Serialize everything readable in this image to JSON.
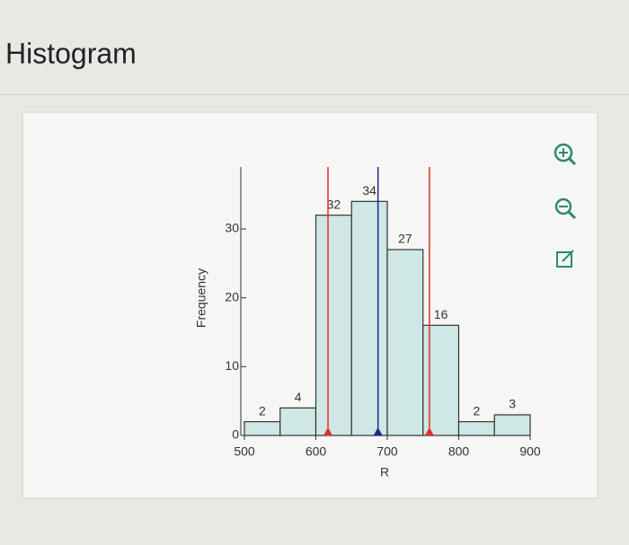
{
  "chart_data": {
    "type": "histogram",
    "title": "Histogram",
    "bins": [
      500,
      550,
      600,
      650,
      700,
      750,
      800,
      850,
      900
    ],
    "values": [
      2,
      4,
      32,
      34,
      27,
      16,
      2,
      3
    ],
    "color": "#cfe7e5",
    "xlabel": "R",
    "ylabel": "Frequency",
    "xlim": [
      500,
      900
    ],
    "xticks": [
      500,
      600,
      700,
      800,
      900
    ],
    "ylim": [
      0,
      39
    ],
    "yticks": [
      0,
      10,
      20,
      30
    ],
    "markers": [
      {
        "value": 617,
        "color": "#e0302a"
      },
      {
        "value": 687,
        "color": "#1f2a8a"
      },
      {
        "value": 759,
        "color": "#e0302a"
      }
    ]
  }
}
